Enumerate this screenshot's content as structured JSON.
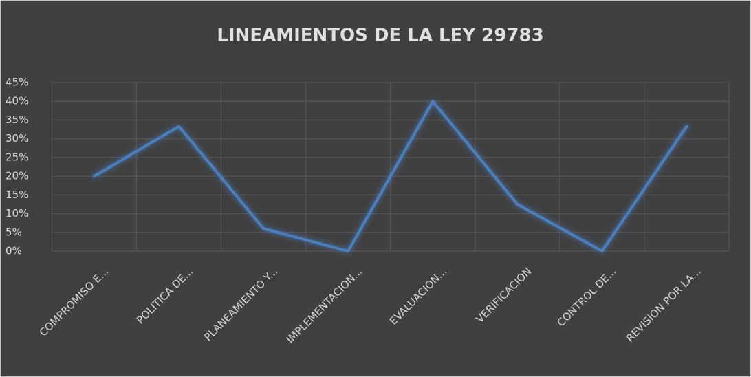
{
  "chart_data": {
    "type": "line",
    "title": "LINEAMIENTOS DE LA LEY 29783",
    "categories": [
      "COMPROMISO E...",
      "POLITICA DE...",
      "PLANEAMIENTO Y...",
      "IMPLEMENTACION...",
      "EVALUACION...",
      "VERIFICACION",
      "CONTROL DE...",
      "REVISION POR LA..."
    ],
    "series": [
      {
        "name": "LINEAMIENTOS DE LA LEY 29783",
        "color": "#4a7ebf",
        "values": [
          20,
          33.3,
          6,
          0,
          40,
          12.5,
          0,
          33.3
        ]
      }
    ],
    "ylim": [
      0,
      45
    ],
    "yticks": [
      {
        "value": 0,
        "label": "0%"
      },
      {
        "value": 5,
        "label": "5%"
      },
      {
        "value": 10,
        "label": "10%"
      },
      {
        "value": 15,
        "label": "15%"
      },
      {
        "value": 20,
        "label": "20%"
      },
      {
        "value": 25,
        "label": "25%"
      },
      {
        "value": 30,
        "label": "30%"
      },
      {
        "value": 35,
        "label": "35%"
      },
      {
        "value": 40,
        "label": "40%"
      },
      {
        "value": 45,
        "label": "45%"
      }
    ],
    "grid": true
  }
}
